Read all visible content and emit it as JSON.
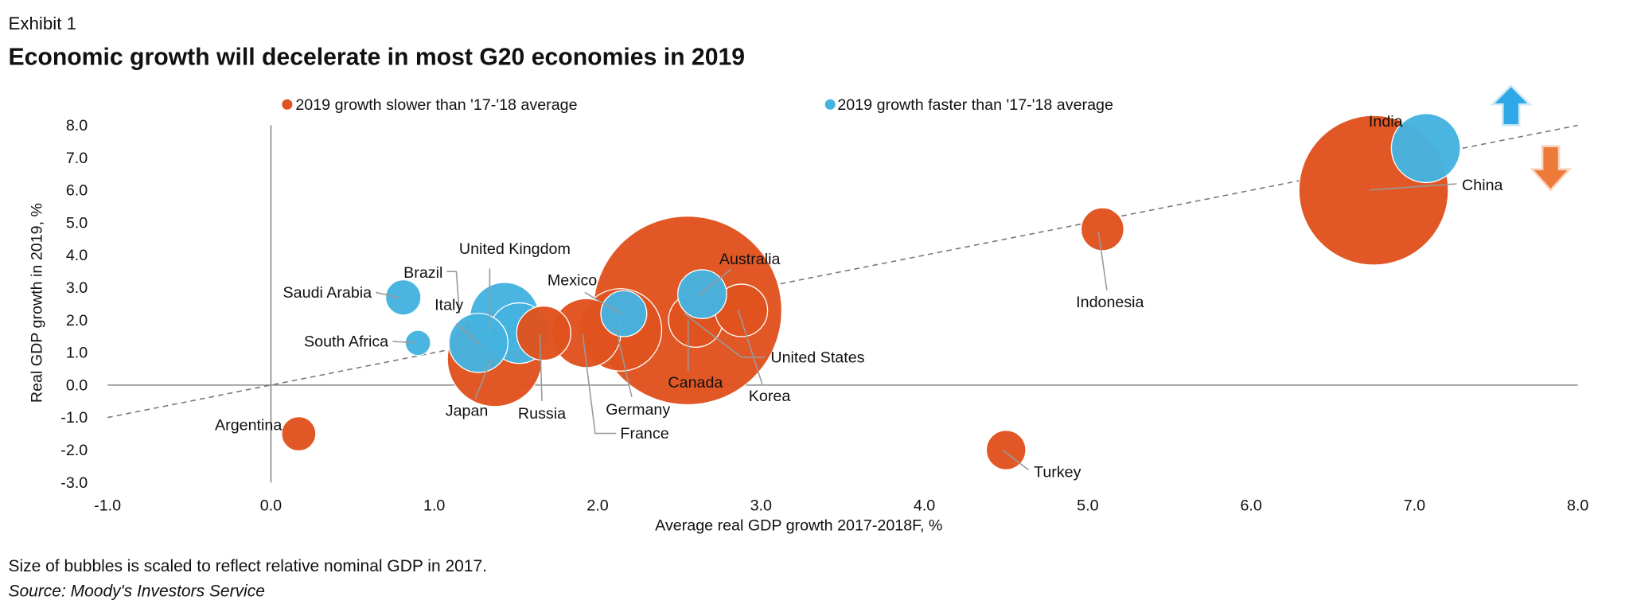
{
  "exhibit": "Exhibit 1",
  "title": "Economic growth will decelerate in most G20 economies in 2019",
  "footnote": "Size of bubbles is scaled to reflect relative nominal GDP in 2017.",
  "source": "Source: Moody's Investors Service",
  "colors": {
    "slower": "#E0531F",
    "faster": "#45B3E0",
    "up_arrow": "#2EA8E6",
    "down_arrow": "#EE7A3A"
  },
  "icons": {
    "up": "arrow-up-icon",
    "down": "arrow-down-icon"
  },
  "chart_data": {
    "type": "scatter",
    "subtype": "bubble",
    "xlabel": "Average real GDP growth 2017-2018F, %",
    "ylabel": "Real GDP growth in 2019, %",
    "xlim": [
      -1.0,
      8.0
    ],
    "ylim": [
      -3.0,
      8.0
    ],
    "x_ticks": [
      "-1.0",
      "0.0",
      "1.0",
      "2.0",
      "3.0",
      "4.0",
      "5.0",
      "6.0",
      "7.0",
      "8.0"
    ],
    "y_ticks": [
      "8.0",
      "7.0",
      "6.0",
      "5.0",
      "4.0",
      "3.0",
      "2.0",
      "1.0",
      "0.0",
      "-1.0",
      "-2.0",
      "-3.0"
    ],
    "grid": false,
    "legend_position": "top",
    "legend": [
      {
        "key": "slower",
        "label": "2019 growth slower than '17-'18 average"
      },
      {
        "key": "faster",
        "label": "2019 growth faster than '17-'18 average"
      }
    ],
    "reference_line": {
      "style": "dashed",
      "from": [
        -1.0,
        -1.0
      ],
      "to": [
        8.0,
        8.0
      ]
    },
    "points": [
      {
        "name": "China",
        "x": 6.75,
        "y": 6.0,
        "size": 12.2,
        "group": "slower"
      },
      {
        "name": "United States",
        "x": 2.55,
        "y": 2.3,
        "size": 19.4,
        "group": "slower"
      },
      {
        "name": "Japan",
        "x": 1.37,
        "y": 0.8,
        "size": 4.9,
        "group": "slower"
      },
      {
        "name": "Germany",
        "x": 2.14,
        "y": 1.7,
        "size": 3.7,
        "group": "slower"
      },
      {
        "name": "France",
        "x": 1.93,
        "y": 1.6,
        "size": 2.6,
        "group": "slower"
      },
      {
        "name": "Russia",
        "x": 1.67,
        "y": 1.6,
        "size": 1.6,
        "group": "slower"
      },
      {
        "name": "Canada",
        "x": 2.6,
        "y": 2.0,
        "size": 1.6,
        "group": "slower"
      },
      {
        "name": "Korea",
        "x": 2.88,
        "y": 2.3,
        "size": 1.5,
        "group": "slower"
      },
      {
        "name": "Indonesia",
        "x": 5.09,
        "y": 4.8,
        "size": 1.0,
        "group": "slower"
      },
      {
        "name": "Turkey",
        "x": 4.5,
        "y": -2.0,
        "size": 0.85,
        "group": "slower"
      },
      {
        "name": "Argentina",
        "x": 0.17,
        "y": -1.5,
        "size": 0.64,
        "group": "slower"
      },
      {
        "name": "India",
        "x": 7.07,
        "y": 7.3,
        "size": 2.6,
        "group": "faster"
      },
      {
        "name": "United Kingdom",
        "x": 1.43,
        "y": 2.1,
        "size": 2.6,
        "group": "faster"
      },
      {
        "name": "Brazil",
        "x": 1.52,
        "y": 1.6,
        "size": 2.0,
        "group": "faster"
      },
      {
        "name": "Italy",
        "x": 1.27,
        "y": 1.3,
        "size": 1.9,
        "group": "faster"
      },
      {
        "name": "Australia",
        "x": 2.64,
        "y": 2.8,
        "size": 1.3,
        "group": "faster"
      },
      {
        "name": "Mexico",
        "x": 2.16,
        "y": 2.2,
        "size": 1.15,
        "group": "faster"
      },
      {
        "name": "Saudi Arabia",
        "x": 0.81,
        "y": 2.7,
        "size": 0.68,
        "group": "faster"
      },
      {
        "name": "South Africa",
        "x": 0.9,
        "y": 1.3,
        "size": 0.35,
        "group": "faster"
      }
    ]
  }
}
